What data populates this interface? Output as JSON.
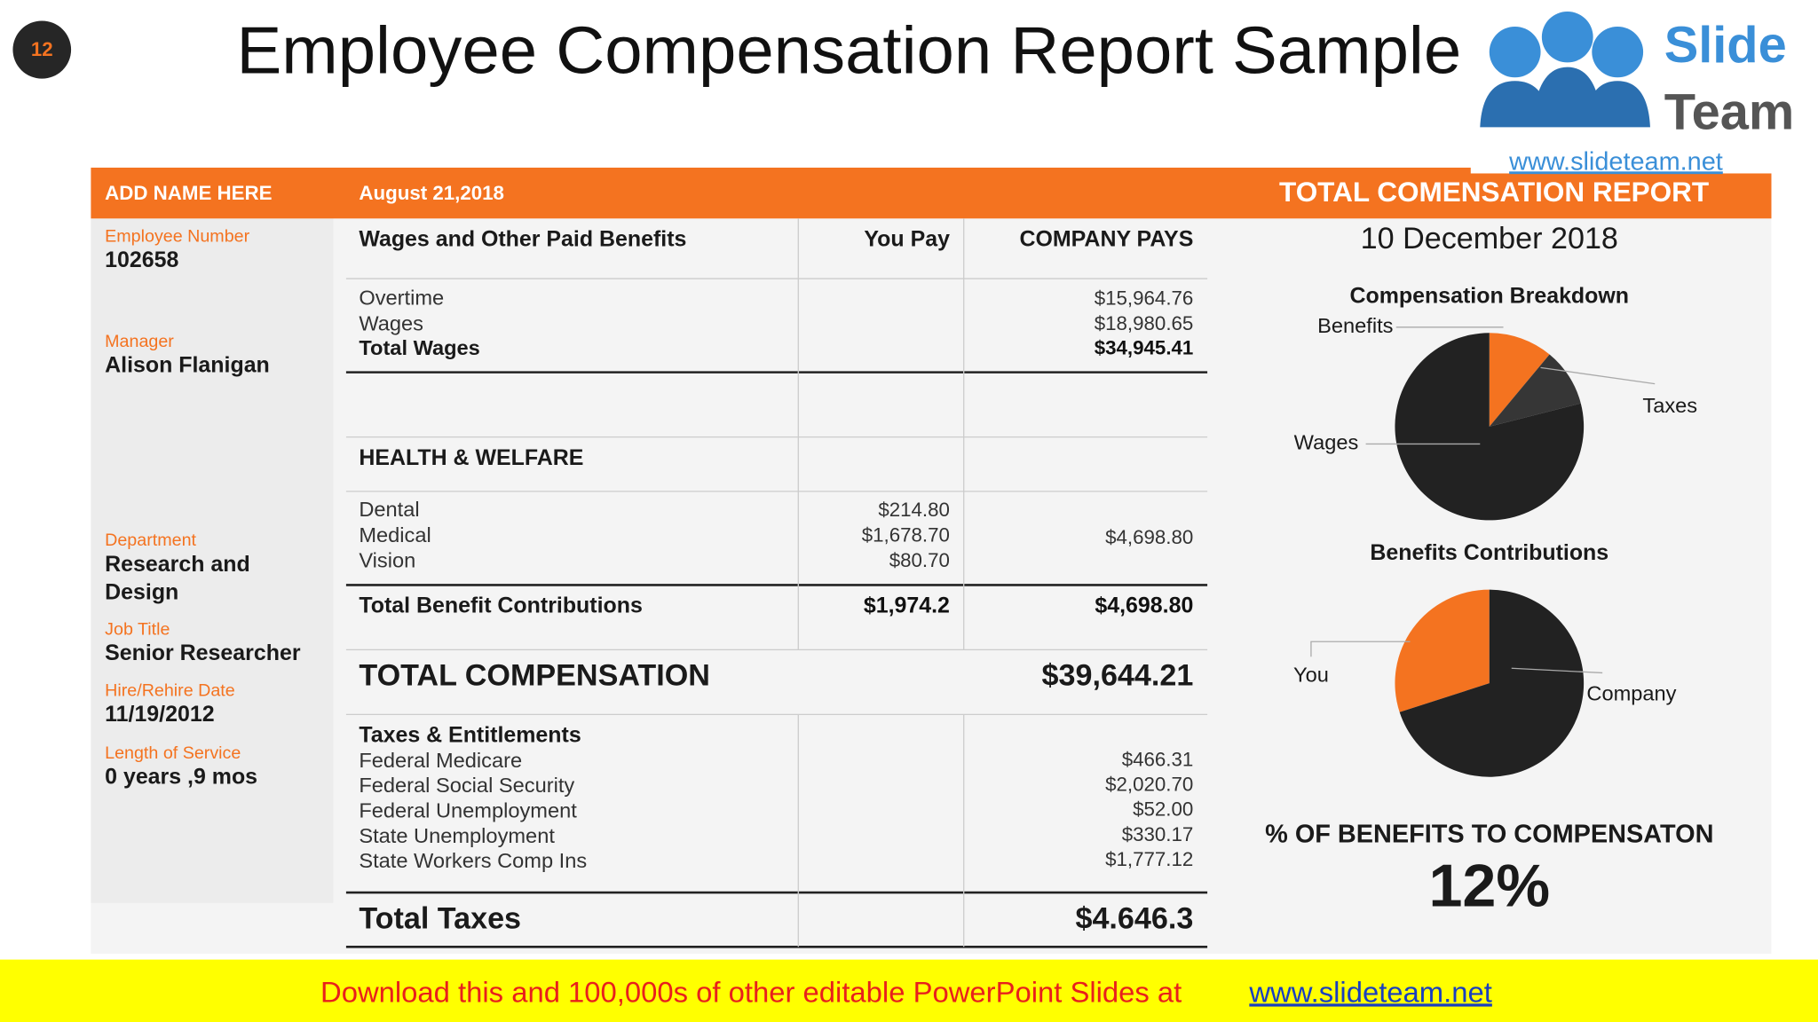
{
  "slide_number": "12",
  "title": "Employee Compensation Report Sample",
  "logo": {
    "word1": "Slide",
    "word2": "Team",
    "url": "www.slideteam.net"
  },
  "header": {
    "name": "ADD NAME HERE",
    "date": "August 21,2018",
    "report_title": "TOTAL COMENSATION REPORT",
    "report_date": "10 December 2018"
  },
  "employee": [
    {
      "label": "Employee Number",
      "value": "102658"
    },
    {
      "label": "Manager",
      "value": "Alison Flanigan"
    },
    {
      "label": "Department",
      "value": "Research and Design"
    },
    {
      "label": "Job Title",
      "value": "Senior Researcher"
    },
    {
      "label": "Hire/Rehire Date",
      "value": "11/19/2012"
    },
    {
      "label": "Length of Service",
      "value": "0 years ,9 mos"
    }
  ],
  "table": {
    "headers": [
      "Wages and Other Paid Benefits",
      "You Pay",
      "COMPANY PAYS"
    ],
    "wages": {
      "items": [
        "Overtime",
        "Wages"
      ],
      "company": [
        "$15,964.76",
        "$18,980.65"
      ],
      "total_label": "Total Wages",
      "total_company": "$34,945.41"
    },
    "health": {
      "heading": "HEALTH & WELFARE",
      "items": [
        "Dental",
        "Medical",
        "Vision"
      ],
      "you": [
        "$214.80",
        "$1,678.70",
        "$80.70"
      ],
      "company": "$4,698.80"
    },
    "benefit_total": {
      "label": "Total Benefit Contributions",
      "you": "$1,974.2",
      "company": "$4,698.80"
    },
    "total_comp": {
      "label": "TOTAL COMPENSATION",
      "value": "$39,644.21"
    },
    "taxes": {
      "heading": "Taxes & Entitlements",
      "items": [
        "Federal Medicare",
        "Federal Social Security",
        "Federal Unemployment",
        "State Unemployment",
        "State Workers Comp Ins"
      ],
      "company": [
        "$466.31",
        "$2,020.70",
        "$52.00",
        "$330.17",
        "$1,777.12"
      ]
    },
    "total_taxes": {
      "label": "Total Taxes",
      "value": "$4.646.3"
    }
  },
  "chart_data": [
    {
      "type": "pie",
      "title": "Compensation Breakdown",
      "categories": [
        "Benefits",
        "Taxes",
        "Wages"
      ],
      "values": [
        11,
        10,
        79
      ],
      "colors": [
        "#f47320",
        "#363636",
        "#222222"
      ]
    },
    {
      "type": "pie",
      "title": "Benefits Contributions",
      "categories": [
        "You",
        "Company"
      ],
      "values": [
        30,
        70
      ],
      "colors": [
        "#f47320",
        "#222222"
      ]
    }
  ],
  "benefits_percent": {
    "label": "% OF BENEFITS TO COMPENSATON",
    "value": "12%"
  },
  "footer": {
    "text": "Download this and 100,000s of other editable PowerPoint Slides at",
    "link": "www.slideteam.net"
  }
}
